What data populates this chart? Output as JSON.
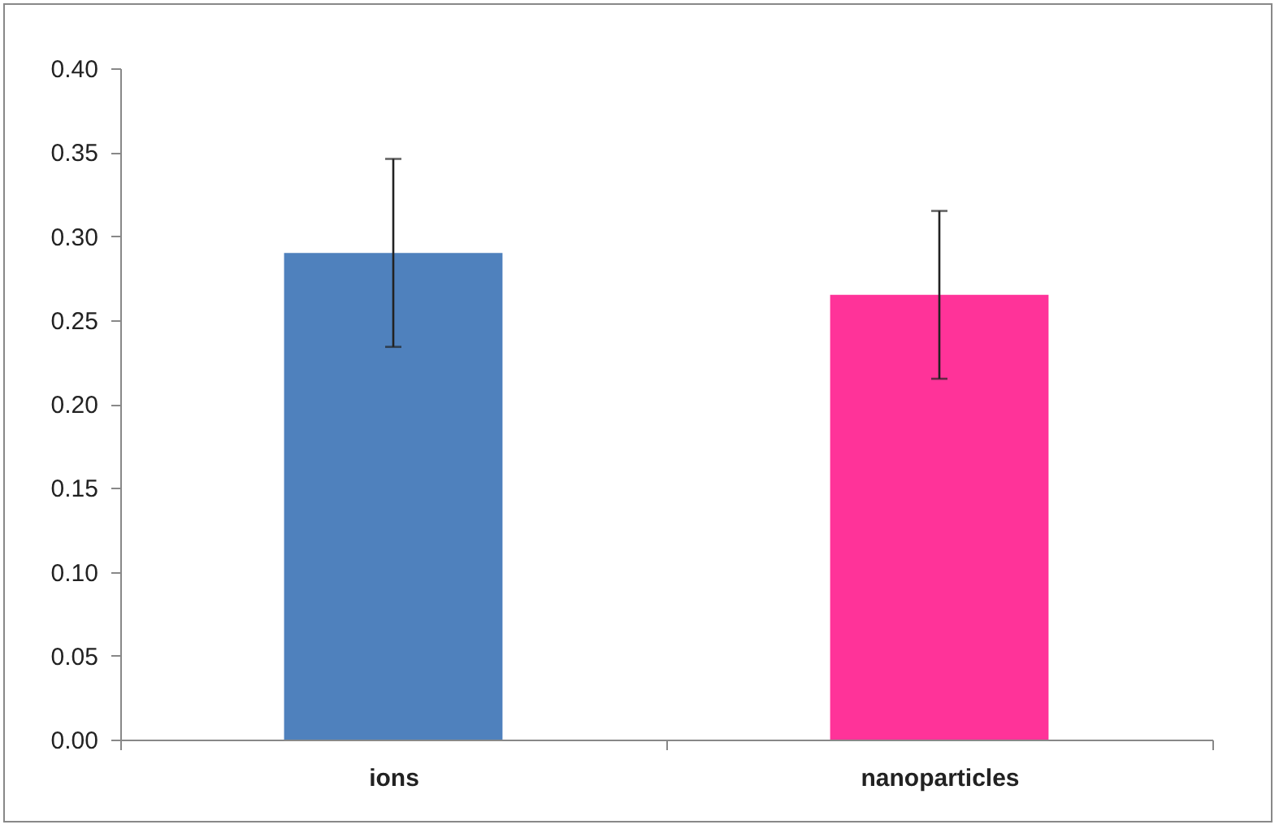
{
  "chart_data": {
    "type": "bar",
    "categories": [
      "ions",
      "nanoparticles"
    ],
    "values": [
      0.29,
      0.265
    ],
    "errors": [
      0.056,
      0.05
    ],
    "colors": [
      "#4f81bd",
      "#ff3399"
    ],
    "ylim": [
      0,
      0.4
    ],
    "yticks": [
      {
        "value": 0,
        "label": "0.00"
      },
      {
        "value": 0.05,
        "label": "0.05"
      },
      {
        "value": 0.1,
        "label": "0.10"
      },
      {
        "value": 0.15,
        "label": "0.15"
      },
      {
        "value": 0.2,
        "label": "0.20"
      },
      {
        "value": 0.25,
        "label": "0.25"
      },
      {
        "value": 0.3,
        "label": "0.30"
      },
      {
        "value": 0.35,
        "label": "0.35"
      },
      {
        "value": 0.4,
        "label": "0.40"
      }
    ],
    "grid": false
  }
}
